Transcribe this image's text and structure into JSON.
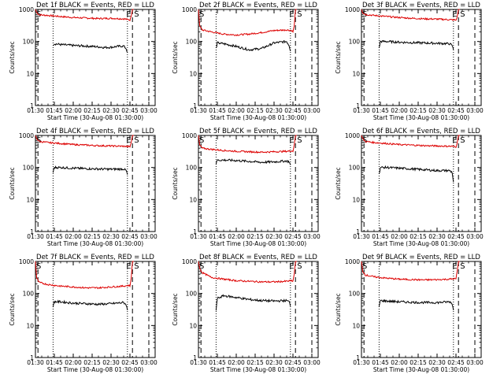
{
  "colors": {
    "events": "#000000",
    "lld": "#dd0000",
    "frame": "#000000"
  },
  "xlabel": "Start Time (30-Aug-08 01:30:00)",
  "ylabel": "Counts/sec",
  "markers": {
    "start": "S",
    "end": "E"
  },
  "chart_data": [
    {
      "type": "line",
      "title": "Det 1f BLACK = Events, RED = LLD",
      "x_ticks": [
        "01:30",
        "01:45",
        "02:00",
        "02:15",
        "02:30",
        "02:45",
        "03:00"
      ],
      "y_ticks": [
        "1",
        "10",
        "100",
        "1000"
      ],
      "xlim_min": [
        0,
        95
      ],
      "ylim": [
        1,
        1000
      ],
      "y_scale": "log",
      "vlines_dashed_min": [
        2,
        77,
        90
      ],
      "vlines_dotted_min": [
        14,
        73
      ],
      "series": [
        {
          "name": "LLD",
          "color": "#dd0000",
          "x_min": [
            0,
            1,
            3,
            10,
            20,
            30,
            40,
            50,
            60,
            65,
            70,
            74,
            75,
            76,
            77,
            78
          ],
          "values": [
            1000,
            800,
            680,
            650,
            600,
            560,
            540,
            520,
            530,
            520,
            510,
            480,
            470,
            600,
            1000,
            1000
          ]
        },
        {
          "name": "Events",
          "color": "#000000",
          "x_min": [
            14,
            15,
            20,
            30,
            40,
            50,
            55,
            60,
            65,
            70,
            72,
            73
          ],
          "values": [
            80,
            85,
            80,
            75,
            72,
            68,
            65,
            66,
            70,
            72,
            60,
            45
          ]
        }
      ]
    },
    {
      "type": "line",
      "title": "Det 2f BLACK = Events, RED = LLD",
      "x_ticks": [
        "01:30",
        "01:45",
        "02:00",
        "02:15",
        "02:30",
        "02:45",
        "03:00"
      ],
      "y_ticks": [
        "1",
        "10",
        "100",
        "1000"
      ],
      "xlim_min": [
        0,
        95
      ],
      "ylim": [
        1,
        1000
      ],
      "y_scale": "log",
      "vlines_dashed_min": [
        2,
        77,
        90
      ],
      "vlines_dotted_min": [
        14,
        73
      ],
      "series": [
        {
          "name": "LLD",
          "color": "#dd0000",
          "x_min": [
            0,
            1,
            3,
            10,
            20,
            30,
            40,
            50,
            60,
            70,
            74,
            75,
            76,
            77,
            78
          ],
          "values": [
            1000,
            300,
            230,
            200,
            170,
            160,
            170,
            190,
            220,
            230,
            220,
            200,
            300,
            1000,
            1000
          ]
        },
        {
          "name": "Events",
          "color": "#000000",
          "x_min": [
            14,
            15,
            20,
            30,
            40,
            50,
            60,
            70,
            72,
            73
          ],
          "values": [
            60,
            90,
            85,
            70,
            55,
            60,
            90,
            100,
            75,
            50
          ]
        }
      ]
    },
    {
      "type": "line",
      "title": "Det 3f BLACK = Events, RED = LLD",
      "x_ticks": [
        "01:30",
        "01:45",
        "02:00",
        "02:15",
        "02:30",
        "02:45",
        "03:00"
      ],
      "y_ticks": [
        "1",
        "10",
        "100",
        "1000"
      ],
      "xlim_min": [
        0,
        95
      ],
      "ylim": [
        1,
        1000
      ],
      "y_scale": "log",
      "vlines_dashed_min": [
        2,
        77,
        90
      ],
      "vlines_dotted_min": [
        14,
        73
      ],
      "series": [
        {
          "name": "LLD",
          "color": "#dd0000",
          "x_min": [
            0,
            1,
            3,
            10,
            20,
            30,
            40,
            50,
            60,
            70,
            74,
            75,
            76,
            77,
            78
          ],
          "values": [
            1000,
            800,
            700,
            650,
            600,
            560,
            530,
            510,
            500,
            480,
            470,
            460,
            600,
            1000,
            1000
          ]
        },
        {
          "name": "Events",
          "color": "#000000",
          "x_min": [
            14,
            15,
            20,
            30,
            40,
            50,
            60,
            70,
            72,
            73
          ],
          "values": [
            60,
            100,
            100,
            95,
            92,
            90,
            88,
            85,
            75,
            55
          ]
        }
      ]
    },
    {
      "type": "line",
      "title": "Det 4f BLACK = Events, RED = LLD",
      "x_ticks": [
        "01:30",
        "01:45",
        "02:00",
        "02:15",
        "02:30",
        "02:45",
        "03:00"
      ],
      "y_ticks": [
        "1",
        "10",
        "100",
        "1000"
      ],
      "xlim_min": [
        0,
        95
      ],
      "ylim": [
        1,
        1000
      ],
      "y_scale": "log",
      "vlines_dashed_min": [
        2,
        77,
        90
      ],
      "vlines_dotted_min": [
        14,
        73
      ],
      "series": [
        {
          "name": "LLD",
          "color": "#dd0000",
          "x_min": [
            0,
            1,
            3,
            10,
            20,
            30,
            40,
            50,
            60,
            70,
            74,
            75,
            76,
            77,
            78
          ],
          "values": [
            1000,
            800,
            650,
            600,
            560,
            520,
            500,
            480,
            470,
            460,
            450,
            440,
            600,
            1000,
            1000
          ]
        },
        {
          "name": "Events",
          "color": "#000000",
          "x_min": [
            14,
            15,
            20,
            30,
            40,
            50,
            60,
            70,
            72,
            73
          ],
          "values": [
            70,
            100,
            100,
            95,
            92,
            90,
            88,
            90,
            80,
            60
          ]
        }
      ]
    },
    {
      "type": "line",
      "title": "Det 5f BLACK = Events, RED = LLD",
      "x_ticks": [
        "01:30",
        "01:45",
        "02:00",
        "02:15",
        "02:30",
        "02:45",
        "03:00"
      ],
      "y_ticks": [
        "1",
        "10",
        "100",
        "1000"
      ],
      "xlim_min": [
        0,
        95
      ],
      "ylim": [
        1,
        1000
      ],
      "y_scale": "log",
      "vlines_dashed_min": [
        2,
        77,
        90
      ],
      "vlines_dotted_min": [
        14,
        73
      ],
      "series": [
        {
          "name": "LLD",
          "color": "#dd0000",
          "x_min": [
            0,
            1,
            3,
            10,
            20,
            30,
            40,
            50,
            60,
            70,
            74,
            75,
            76,
            77,
            78
          ],
          "values": [
            1000,
            500,
            400,
            370,
            340,
            320,
            310,
            300,
            310,
            320,
            330,
            320,
            500,
            1000,
            1000
          ]
        },
        {
          "name": "Events",
          "color": "#000000",
          "x_min": [
            14,
            15,
            20,
            30,
            40,
            50,
            60,
            70,
            72,
            73
          ],
          "values": [
            130,
            170,
            170,
            165,
            155,
            145,
            150,
            160,
            150,
            120
          ]
        }
      ]
    },
    {
      "type": "line",
      "title": "Det 6f BLACK = Events, RED = LLD",
      "x_ticks": [
        "01:30",
        "01:45",
        "02:00",
        "02:15",
        "02:30",
        "02:45",
        "03:00"
      ],
      "y_ticks": [
        "1",
        "10",
        "100",
        "1000"
      ],
      "xlim_min": [
        0,
        95
      ],
      "ylim": [
        1,
        1000
      ],
      "y_scale": "log",
      "vlines_dashed_min": [
        2,
        77,
        90
      ],
      "vlines_dotted_min": [
        14,
        73
      ],
      "series": [
        {
          "name": "LLD",
          "color": "#dd0000",
          "x_min": [
            0,
            1,
            3,
            10,
            20,
            30,
            40,
            50,
            60,
            70,
            74,
            75,
            76,
            77,
            78
          ],
          "values": [
            1000,
            800,
            650,
            600,
            560,
            520,
            500,
            480,
            470,
            460,
            450,
            440,
            600,
            1000,
            1000
          ]
        },
        {
          "name": "Events",
          "color": "#000000",
          "x_min": [
            14,
            15,
            20,
            30,
            40,
            50,
            60,
            70,
            72,
            73
          ],
          "values": [
            60,
            100,
            100,
            95,
            90,
            85,
            80,
            80,
            70,
            35
          ]
        }
      ]
    },
    {
      "type": "line",
      "title": "Det 7f BLACK = Events, RED = LLD",
      "x_ticks": [
        "01:30",
        "01:45",
        "02:00",
        "02:15",
        "02:30",
        "02:45",
        "03:00"
      ],
      "y_ticks": [
        "1",
        "10",
        "100",
        "1000"
      ],
      "xlim_min": [
        0,
        95
      ],
      "ylim": [
        1,
        1000
      ],
      "y_scale": "log",
      "vlines_dashed_min": [
        2,
        77,
        90
      ],
      "vlines_dotted_min": [
        14,
        73
      ],
      "series": [
        {
          "name": "LLD",
          "color": "#dd0000",
          "x_min": [
            0,
            1,
            3,
            10,
            20,
            30,
            40,
            50,
            60,
            70,
            74,
            75,
            76,
            77,
            78
          ],
          "values": [
            1000,
            300,
            220,
            190,
            170,
            160,
            150,
            150,
            160,
            170,
            180,
            170,
            300,
            1000,
            1000
          ]
        },
        {
          "name": "Events",
          "color": "#000000",
          "x_min": [
            14,
            15,
            20,
            30,
            40,
            50,
            60,
            70,
            72,
            73
          ],
          "values": [
            40,
            55,
            55,
            50,
            48,
            46,
            48,
            52,
            45,
            30
          ]
        }
      ]
    },
    {
      "type": "line",
      "title": "Det 8f BLACK = Events, RED = LLD",
      "x_ticks": [
        "01:30",
        "01:45",
        "02:00",
        "02:15",
        "02:30",
        "02:45",
        "03:00"
      ],
      "y_ticks": [
        "1",
        "10",
        "100",
        "1000"
      ],
      "xlim_min": [
        0,
        95
      ],
      "ylim": [
        1,
        1000
      ],
      "y_scale": "log",
      "vlines_dashed_min": [
        2,
        77,
        90
      ],
      "vlines_dotted_min": [
        14,
        73
      ],
      "series": [
        {
          "name": "LLD",
          "color": "#dd0000",
          "x_min": [
            0,
            1,
            3,
            10,
            20,
            30,
            40,
            50,
            60,
            70,
            74,
            75,
            76,
            77,
            78
          ],
          "values": [
            1000,
            600,
            450,
            320,
            280,
            250,
            240,
            230,
            230,
            240,
            250,
            240,
            400,
            1000,
            1000
          ]
        },
        {
          "name": "Events",
          "color": "#000000",
          "x_min": [
            14,
            15,
            20,
            30,
            40,
            50,
            60,
            70,
            72,
            73
          ],
          "values": [
            30,
            70,
            85,
            75,
            65,
            60,
            58,
            60,
            55,
            40
          ]
        }
      ]
    },
    {
      "type": "line",
      "title": "Det 9f BLACK = Events, RED = LLD",
      "x_ticks": [
        "01:30",
        "01:45",
        "02:00",
        "02:15",
        "02:30",
        "02:45",
        "03:00"
      ],
      "y_ticks": [
        "1",
        "10",
        "100",
        "1000"
      ],
      "xlim_min": [
        0,
        95
      ],
      "ylim": [
        1,
        1000
      ],
      "y_scale": "log",
      "vlines_dashed_min": [
        2,
        77,
        90
      ],
      "vlines_dotted_min": [
        14,
        73
      ],
      "series": [
        {
          "name": "LLD",
          "color": "#dd0000",
          "x_min": [
            0,
            1,
            3,
            10,
            20,
            30,
            40,
            50,
            60,
            70,
            74,
            75,
            76,
            77,
            78
          ],
          "values": [
            1000,
            500,
            380,
            330,
            300,
            280,
            270,
            265,
            270,
            280,
            290,
            280,
            500,
            1000,
            1000
          ]
        },
        {
          "name": "Events",
          "color": "#000000",
          "x_min": [
            14,
            15,
            20,
            30,
            40,
            50,
            60,
            70,
            72,
            73
          ],
          "values": [
            40,
            60,
            58,
            55,
            53,
            52,
            52,
            55,
            48,
            30
          ]
        }
      ]
    }
  ]
}
